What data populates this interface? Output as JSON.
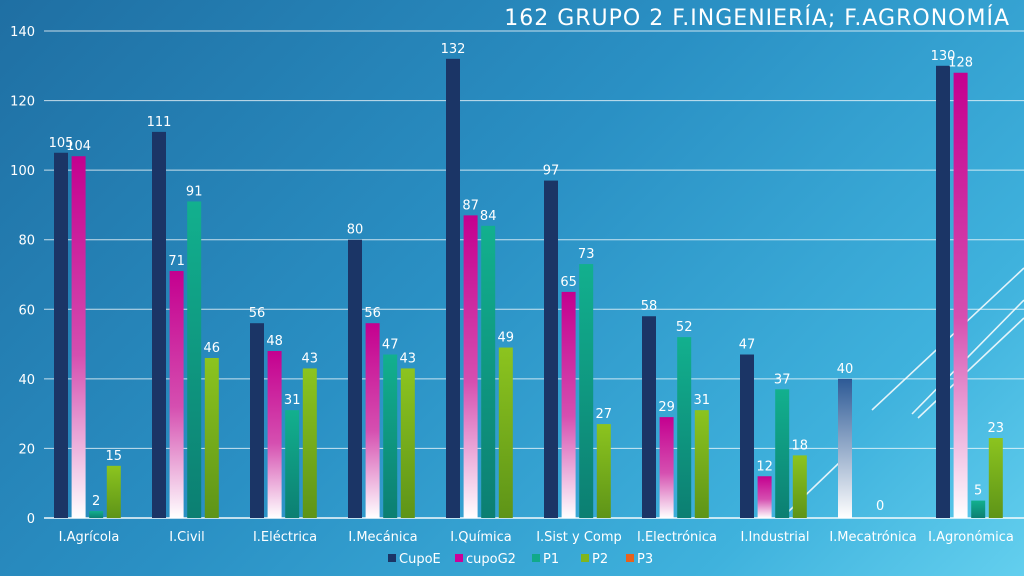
{
  "chart_data": {
    "type": "bar",
    "title": "162  GRUPO 2  F.INGENIERÍA;  F.AGRONOMÍA",
    "categories": [
      "I.Agrícola",
      "I.Civil",
      "I.Eléctrica",
      "I.Mecánica",
      "I.Química",
      "I.Sist y Comp",
      "I.Electrónica",
      "I.Industrial",
      "I.Mecatrónica",
      "I.Agronómica"
    ],
    "series": [
      {
        "name": "CupoE",
        "values": [
          105,
          111,
          56,
          80,
          132,
          97,
          58,
          47,
          40,
          130
        ]
      },
      {
        "name": "cupoG2",
        "values": [
          104,
          71,
          48,
          56,
          87,
          65,
          29,
          12,
          null,
          128
        ]
      },
      {
        "name": "P1",
        "values": [
          2,
          91,
          31,
          47,
          84,
          73,
          52,
          37,
          0,
          5
        ]
      },
      {
        "name": "P2",
        "values": [
          15,
          46,
          43,
          43,
          49,
          27,
          31,
          18,
          null,
          23
        ]
      },
      {
        "name": "P3",
        "values": [
          null,
          null,
          null,
          null,
          null,
          null,
          null,
          null,
          null,
          null
        ]
      }
    ],
    "colors": {
      "CupoE": "#1b3566",
      "cupoG2": "#cc0099",
      "P1": "#11a98a",
      "P2": "#7fb51e",
      "P3": "#e8621c"
    },
    "ylim": [
      0,
      140
    ],
    "yticks": [
      0,
      20,
      40,
      60,
      80,
      100,
      120,
      140
    ],
    "grid": true,
    "legend_position": "bottom"
  }
}
